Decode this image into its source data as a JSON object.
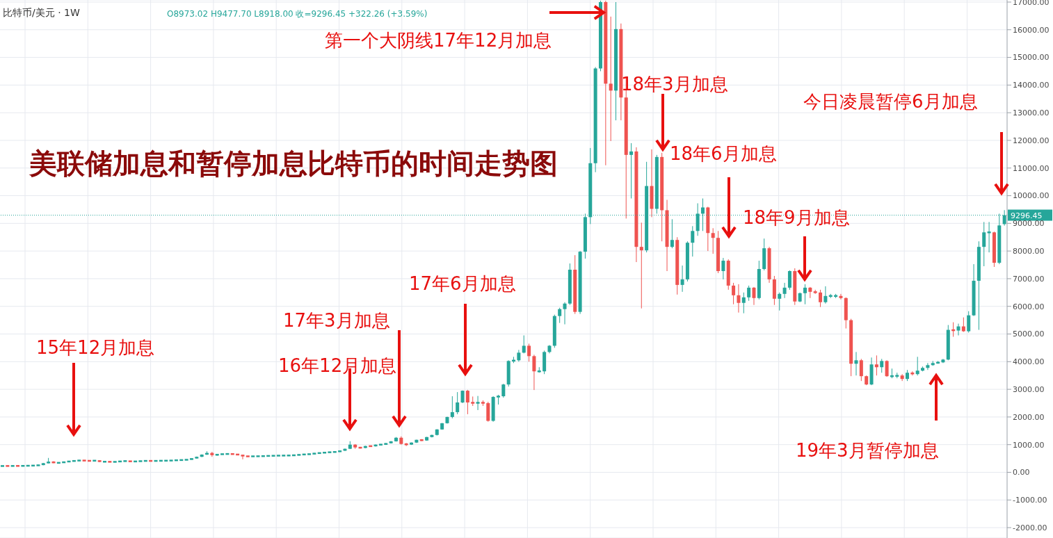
{
  "chart_data": {
    "type": "candlestick",
    "title": "美联储加息和暂停加息比特币的时间走势图",
    "subtitle": "比特币/美元 · 1W",
    "annotations": [
      "O8973.02 H9477.70 L8918.00 收=9296.45 +322.26 (+3.59%)",
      "第一个大阴线17年12月加息",
      "18年3月加息",
      "18年6月加息",
      "18年9月加息",
      "今日凌晨暂停6月加息",
      "15年12月加息",
      "16年12月加息",
      "17年3月加息",
      "17年6月加息",
      "19年3月暂停加息"
    ],
    "categories": [
      null,
      null,
      null,
      null,
      null,
      null,
      null,
      null,
      null,
      null,
      null,
      null,
      null,
      null,
      null,
      null,
      null,
      null,
      null,
      null,
      null,
      null,
      null,
      null,
      null,
      null,
      null,
      null,
      null,
      null,
      null,
      null,
      null,
      null,
      null,
      null,
      null,
      null,
      null,
      null,
      null,
      null,
      null,
      null,
      null,
      null,
      null,
      null,
      null,
      null,
      null,
      null,
      null,
      null,
      null,
      null,
      null,
      null,
      null,
      null,
      null,
      null,
      null,
      null,
      null,
      null,
      null,
      null,
      null,
      null,
      null,
      null,
      null,
      null,
      null,
      null,
      null,
      null,
      null,
      null,
      null,
      null,
      null,
      null,
      null,
      null,
      null,
      null,
      null,
      null,
      null,
      null,
      null,
      null,
      null,
      null,
      null,
      null,
      null,
      null,
      null,
      null,
      null,
      null,
      null,
      null,
      null,
      null,
      null,
      null,
      null,
      null,
      null,
      null,
      null,
      null,
      null,
      null,
      null,
      null,
      null,
      null,
      null,
      null,
      null,
      null,
      null,
      null,
      null,
      null,
      null,
      null,
      null,
      null,
      null,
      null,
      null,
      null,
      null,
      null,
      null,
      null,
      null,
      null,
      null,
      null,
      null,
      null,
      null,
      null,
      null,
      null,
      null,
      null,
      null,
      null,
      null,
      null,
      null,
      null,
      null,
      null,
      null,
      null,
      null,
      null,
      null,
      null,
      null,
      null,
      null,
      null,
      null,
      null,
      null,
      null,
      null,
      null,
      null,
      null,
      null,
      null,
      null,
      null,
      null,
      null,
      null,
      null,
      null,
      null,
      null,
      null,
      null,
      null,
      null,
      null,
      null
    ],
    "ohlc": [
      [
        225,
        235,
        220,
        230
      ],
      [
        230,
        235,
        224,
        228
      ],
      [
        228,
        236,
        225,
        232
      ],
      [
        232,
        236,
        226,
        230
      ],
      [
        230,
        240,
        228,
        235
      ],
      [
        235,
        244,
        232,
        240
      ],
      [
        240,
        250,
        236,
        245
      ],
      [
        245,
        270,
        240,
        260
      ],
      [
        260,
        340,
        255,
        330
      ],
      [
        330,
        520,
        320,
        380
      ],
      [
        380,
        400,
        330,
        340
      ],
      [
        340,
        360,
        320,
        345
      ],
      [
        345,
        390,
        340,
        380
      ],
      [
        380,
        410,
        370,
        400
      ],
      [
        400,
        430,
        390,
        420
      ],
      [
        420,
        445,
        410,
        430
      ],
      [
        430,
        440,
        410,
        420
      ],
      [
        420,
        430,
        400,
        410
      ],
      [
        410,
        440,
        405,
        430
      ],
      [
        430,
        435,
        370,
        380
      ],
      [
        380,
        395,
        370,
        385
      ],
      [
        385,
        390,
        365,
        375
      ],
      [
        375,
        390,
        370,
        380
      ],
      [
        380,
        415,
        375,
        405
      ],
      [
        405,
        415,
        395,
        405
      ],
      [
        405,
        410,
        385,
        390
      ],
      [
        390,
        400,
        385,
        395
      ],
      [
        395,
        415,
        390,
        410
      ],
      [
        410,
        420,
        405,
        415
      ],
      [
        415,
        420,
        400,
        410
      ],
      [
        410,
        420,
        405,
        415
      ],
      [
        415,
        425,
        410,
        420
      ],
      [
        420,
        428,
        412,
        420
      ],
      [
        420,
        435,
        415,
        430
      ],
      [
        430,
        445,
        425,
        440
      ],
      [
        440,
        450,
        435,
        445
      ],
      [
        445,
        465,
        440,
        460
      ],
      [
        460,
        510,
        455,
        500
      ],
      [
        500,
        570,
        495,
        560
      ],
      [
        560,
        650,
        550,
        640
      ],
      [
        640,
        760,
        630,
        700
      ],
      [
        700,
        740,
        560,
        620
      ],
      [
        620,
        660,
        600,
        650
      ],
      [
        650,
        670,
        640,
        660
      ],
      [
        660,
        680,
        650,
        665
      ],
      [
        665,
        670,
        640,
        655
      ],
      [
        655,
        660,
        620,
        630
      ],
      [
        630,
        640,
        470,
        580
      ],
      [
        580,
        590,
        560,
        575
      ],
      [
        575,
        590,
        570,
        580
      ],
      [
        580,
        590,
        570,
        580
      ],
      [
        580,
        600,
        575,
        590
      ],
      [
        590,
        600,
        585,
        595
      ],
      [
        595,
        610,
        590,
        600
      ],
      [
        600,
        612,
        595,
        605
      ],
      [
        605,
        612,
        598,
        605
      ],
      [
        605,
        615,
        600,
        610
      ],
      [
        610,
        625,
        605,
        620
      ],
      [
        620,
        645,
        615,
        640
      ],
      [
        640,
        655,
        635,
        650
      ],
      [
        650,
        665,
        645,
        660
      ],
      [
        660,
        700,
        655,
        690
      ],
      [
        690,
        710,
        680,
        700
      ],
      [
        700,
        730,
        695,
        720
      ],
      [
        720,
        740,
        715,
        730
      ],
      [
        730,
        750,
        720,
        740
      ],
      [
        740,
        790,
        735,
        780
      ],
      [
        780,
        860,
        770,
        850
      ],
      [
        850,
        1125,
        840,
        1000
      ],
      [
        1000,
        1020,
        850,
        900
      ],
      [
        900,
        920,
        860,
        880
      ],
      [
        880,
        960,
        870,
        950
      ],
      [
        950,
        960,
        920,
        940
      ],
      [
        940,
        1010,
        930,
        1000
      ],
      [
        1000,
        1020,
        980,
        1000
      ],
      [
        1000,
        1060,
        990,
        1050
      ],
      [
        1050,
        1130,
        1040,
        1120
      ],
      [
        1120,
        1275,
        1110,
        1250
      ],
      [
        1250,
        1300,
        1000,
        1025
      ],
      [
        1025,
        1060,
        950,
        1000
      ],
      [
        1000,
        1080,
        990,
        1075
      ],
      [
        1075,
        1180,
        1060,
        1175
      ],
      [
        1175,
        1200,
        1130,
        1150
      ],
      [
        1150,
        1280,
        1140,
        1275
      ],
      [
        1275,
        1360,
        1260,
        1350
      ],
      [
        1350,
        1560,
        1330,
        1550
      ],
      [
        1550,
        1780,
        1540,
        1775
      ],
      [
        1775,
        2010,
        1760,
        2000
      ],
      [
        2000,
        2750,
        1950,
        2175
      ],
      [
        2175,
        2900,
        2100,
        2525
      ],
      [
        2525,
        2960,
        2500,
        2950
      ],
      [
        2950,
        2980,
        2100,
        2525
      ],
      [
        2525,
        2740,
        2400,
        2500
      ],
      [
        2500,
        2760,
        2250,
        2525
      ],
      [
        2525,
        2600,
        2400,
        2500
      ],
      [
        2500,
        2550,
        1830,
        1860
      ],
      [
        1860,
        2750,
        1830,
        2725
      ],
      [
        2725,
        2800,
        2450,
        2750
      ],
      [
        2750,
        3200,
        2700,
        3175
      ],
      [
        3175,
        4050,
        3100,
        4025
      ],
      [
        4025,
        4175,
        3950,
        4050
      ],
      [
        4050,
        4425,
        4000,
        4325
      ],
      [
        4325,
        4950,
        4300,
        4575
      ],
      [
        4575,
        4650,
        4000,
        4200
      ],
      [
        4200,
        4250,
        2975,
        3650
      ],
      [
        3650,
        3800,
        3600,
        3650
      ],
      [
        3650,
        4400,
        3550,
        4350
      ],
      [
        4350,
        4600,
        4300,
        4575
      ],
      [
        4575,
        5700,
        4500,
        5650
      ],
      [
        5650,
        5950,
        5400,
        5900
      ],
      [
        5900,
        6150,
        5350,
        6100
      ],
      [
        6100,
        7550,
        6050,
        7325
      ],
      [
        7325,
        7850,
        5725,
        5800
      ],
      [
        5800,
        8000,
        5725,
        7975
      ],
      [
        7975,
        9350,
        7725,
        9225
      ],
      [
        9225,
        11725,
        8975,
        11175
      ],
      [
        11175,
        14650,
        10850,
        14600
      ],
      [
        14600,
        17050,
        14500,
        17000
      ],
      [
        17000,
        17050,
        11100,
        14050
      ],
      [
        14050,
        16475,
        11975,
        13800
      ],
      [
        13800,
        17000,
        12725,
        16025
      ],
      [
        16025,
        16225,
        12725,
        13550
      ],
      [
        13550,
        14300,
        9175,
        11475
      ],
      [
        11475,
        11900,
        9900,
        11600
      ],
      [
        11600,
        11750,
        7600,
        8150
      ],
      [
        8150,
        9025,
        5925,
        8025
      ],
      [
        8025,
        11225,
        7950,
        10350
      ],
      [
        10350,
        11675,
        9225,
        9525
      ],
      [
        9525,
        11475,
        9350,
        11400
      ],
      [
        11400,
        11550,
        8350,
        9475
      ],
      [
        9475,
        9850,
        7275,
        8150
      ],
      [
        8150,
        9150,
        8100,
        8400
      ],
      [
        8400,
        8500,
        6425,
        6775
      ],
      [
        6775,
        7475,
        6525,
        6975
      ],
      [
        6975,
        8350,
        6900,
        8300
      ],
      [
        8300,
        8900,
        7800,
        8725
      ],
      [
        8725,
        9725,
        8550,
        9350
      ],
      [
        9350,
        9900,
        8725,
        9575
      ],
      [
        9575,
        9600,
        8000,
        8650
      ],
      [
        8650,
        8825,
        7900,
        8475
      ],
      [
        8475,
        8725,
        7200,
        7275
      ],
      [
        7275,
        7750,
        6975,
        7650
      ],
      [
        7650,
        7700,
        6600,
        6750
      ],
      [
        6750,
        6850,
        6075,
        6400
      ],
      [
        6400,
        6800,
        5775,
        6125
      ],
      [
        6125,
        6500,
        5750,
        6325
      ],
      [
        6325,
        6750,
        6200,
        6675
      ],
      [
        6675,
        6700,
        6050,
        6300
      ],
      [
        6300,
        7650,
        6250,
        7350
      ],
      [
        7350,
        8450,
        7300,
        8100
      ],
      [
        8100,
        8150,
        6850,
        6975
      ],
      [
        6975,
        7100,
        6050,
        6275
      ],
      [
        6275,
        6500,
        5850,
        6450
      ],
      [
        6450,
        6850,
        6300,
        6675
      ],
      [
        6675,
        7300,
        6600,
        7275
      ],
      [
        7275,
        7375,
        6050,
        6175
      ],
      [
        6175,
        6500,
        6150,
        6475
      ],
      [
        6475,
        6800,
        6075,
        6675
      ],
      [
        6675,
        6700,
        6300,
        6525
      ],
      [
        6525,
        6600,
        6450,
        6500
      ],
      [
        6500,
        6600,
        5975,
        6150
      ],
      [
        6150,
        6725,
        6100,
        6375
      ],
      [
        6375,
        6450,
        6300,
        6375
      ],
      [
        6375,
        6450,
        6300,
        6375
      ],
      [
        6375,
        6450,
        6250,
        6300
      ],
      [
        6300,
        6325,
        5200,
        5500
      ],
      [
        5500,
        5550,
        3475,
        3925
      ],
      [
        3925,
        4350,
        3500,
        4050
      ],
      [
        4050,
        4100,
        3300,
        3475
      ],
      [
        3475,
        3500,
        3150,
        3175
      ],
      [
        3175,
        4150,
        3150,
        3900
      ],
      [
        3900,
        4225,
        3500,
        3800
      ],
      [
        3800,
        4100,
        3600,
        4025
      ],
      [
        4025,
        4050,
        3450,
        3475
      ],
      [
        3475,
        3750,
        3400,
        3475
      ],
      [
        3475,
        3600,
        3400,
        3500
      ],
      [
        3500,
        3550,
        3300,
        3375
      ],
      [
        3375,
        3700,
        3300,
        3600
      ],
      [
        3600,
        3650,
        3500,
        3550
      ],
      [
        3550,
        4175,
        3500,
        3675
      ],
      [
        3675,
        3825,
        3650,
        3775
      ],
      [
        3775,
        3950,
        3700,
        3875
      ],
      [
        3875,
        4025,
        3850,
        3950
      ],
      [
        3950,
        4025,
        3925,
        3975
      ],
      [
        3975,
        4100,
        3950,
        4075
      ],
      [
        4075,
        5325,
        4050,
        5150
      ],
      [
        5150,
        5425,
        4900,
        5125
      ],
      [
        5125,
        5375,
        4950,
        5275
      ],
      [
        5275,
        5600,
        5075,
        5100
      ],
      [
        5100,
        5825,
        5050,
        5675
      ],
      [
        5675,
        7525,
        5650,
        6925
      ],
      [
        6925,
        8350,
        5150,
        8150
      ],
      [
        8150,
        9050,
        7450,
        8675
      ],
      [
        8675,
        9050,
        7950,
        8675
      ],
      [
        8675,
        8700,
        7425,
        7575
      ],
      [
        7575,
        9350,
        7525,
        8925
      ],
      [
        8973.02,
        9477.7,
        8918.0,
        9296.45
      ]
    ],
    "colors": [
      "#26a69a",
      "#ef5350",
      "#26a69a",
      "#ef5350",
      "#26a69a",
      "#26a69a",
      "#26a69a",
      "#26a69a",
      "#26a69a",
      "#26a69a",
      "#ef5350",
      "#26a69a",
      "#26a69a",
      "#26a69a",
      "#26a69a",
      "#26a69a",
      "#ef5350",
      "#ef5350",
      "#26a69a",
      "#ef5350",
      "#26a69a",
      "#ef5350",
      "#26a69a",
      "#26a69a",
      "#26a69a",
      "#ef5350",
      "#26a69a",
      "#26a69a",
      "#26a69a",
      "#ef5350",
      "#26a69a",
      "#26a69a",
      "#26a69a",
      "#26a69a",
      "#26a69a",
      "#26a69a",
      "#26a69a",
      "#26a69a",
      "#26a69a",
      "#26a69a",
      "#26a69a",
      "#ef5350",
      "#26a69a",
      "#26a69a",
      "#26a69a",
      "#ef5350",
      "#ef5350",
      "#ef5350",
      "#ef5350",
      "#26a69a",
      "#26a69a",
      "#26a69a",
      "#26a69a",
      "#26a69a",
      "#26a69a",
      "#26a69a",
      "#26a69a",
      "#26a69a",
      "#26a69a",
      "#26a69a",
      "#26a69a",
      "#26a69a",
      "#26a69a",
      "#26a69a",
      "#26a69a",
      "#26a69a",
      "#26a69a",
      "#26a69a",
      "#26a69a",
      "#ef5350",
      "#ef5350",
      "#26a69a",
      "#ef5350",
      "#26a69a",
      "#26a69a",
      "#26a69a",
      "#26a69a",
      "#26a69a",
      "#ef5350",
      "#ef5350",
      "#26a69a",
      "#26a69a",
      "#ef5350",
      "#26a69a",
      "#26a69a",
      "#26a69a",
      "#26a69a",
      "#26a69a",
      "#26a69a",
      "#26a69a",
      "#26a69a",
      "#ef5350",
      "#ef5350",
      "#26a69a",
      "#ef5350",
      "#ef5350",
      "#26a69a",
      "#26a69a",
      "#26a69a",
      "#26a69a",
      "#26a69a",
      "#26a69a",
      "#26a69a",
      "#ef5350",
      "#ef5350",
      "#26a69a",
      "#26a69a",
      "#26a69a",
      "#26a69a",
      "#26a69a",
      "#26a69a",
      "#26a69a",
      "#ef5350",
      "#26a69a",
      "#26a69a",
      "#26a69a",
      "#26a69a",
      "#26a69a",
      "#ef5350",
      "#ef5350",
      "#26a69a",
      "#ef5350",
      "#ef5350",
      "#26a69a",
      "#ef5350",
      "#ef5350",
      "#26a69a",
      "#ef5350",
      "#26a69a",
      "#ef5350",
      "#ef5350",
      "#26a69a",
      "#ef5350",
      "#26a69a",
      "#26a69a",
      "#26a69a",
      "#26a69a",
      "#26a69a",
      "#ef5350",
      "#ef5350",
      "#ef5350",
      "#26a69a",
      "#ef5350",
      "#ef5350",
      "#ef5350",
      "#26a69a",
      "#26a69a",
      "#ef5350",
      "#26a69a",
      "#26a69a",
      "#ef5350",
      "#ef5350",
      "#26a69a",
      "#26a69a",
      "#26a69a",
      "#ef5350",
      "#26a69a",
      "#26a69a",
      "#ef5350",
      "#ef5350",
      "#ef5350",
      "#26a69a",
      "#26a69a",
      "#26a69a",
      "#ef5350",
      "#ef5350",
      "#ef5350",
      "#26a69a",
      "#ef5350",
      "#ef5350",
      "#26a69a",
      "#ef5350",
      "#26a69a",
      "#ef5350",
      "#26a69a",
      "#26a69a",
      "#ef5350",
      "#26a69a",
      "#ef5350",
      "#26a69a",
      "#26a69a",
      "#26a69a",
      "#26a69a",
      "#26a69a",
      "#26a69a",
      "#26a69a",
      "#ef5350",
      "#26a69a",
      "#ef5350",
      "#26a69a",
      "#26a69a",
      "#26a69a",
      "#26a69a",
      "#26a69a",
      "#ef5350",
      "#26a69a",
      "#26a69a"
    ],
    "ylim": [
      -2375,
      17075
    ],
    "yticks": [
      {
        "value": -2000,
        "label": "-2000.00"
      },
      {
        "value": -1000,
        "label": "-1000.00"
      },
      {
        "value": 0,
        "label": "0.00"
      },
      {
        "value": 1000,
        "label": "1000.00"
      },
      {
        "value": 2000,
        "label": "2000.00"
      },
      {
        "value": 3000,
        "label": "3000.00"
      },
      {
        "value": 4000,
        "label": "4000.00"
      },
      {
        "value": 5000,
        "label": "5000.00"
      },
      {
        "value": 6000,
        "label": "6000.00"
      },
      {
        "value": 7000,
        "label": "7000.00"
      },
      {
        "value": 8000,
        "label": "8000.00"
      },
      {
        "value": 9000,
        "label": "9000.00"
      },
      {
        "value": 10000,
        "label": "10000.00"
      },
      {
        "value": 11000,
        "label": "11000.00"
      },
      {
        "value": 12000,
        "label": "12000.00"
      },
      {
        "value": 13000,
        "label": "13000.00"
      },
      {
        "value": 14000,
        "label": "14000.00"
      },
      {
        "value": 15000,
        "label": "15000.00"
      },
      {
        "value": 16000,
        "label": "16000.00"
      },
      {
        "value": 17000,
        "label": "17000.00"
      }
    ],
    "ref_lines": [
      {
        "axis": "y",
        "value": 9296.45,
        "label": "9296.45",
        "color": "#26a69a",
        "line_style": "dotted"
      }
    ],
    "grid": true,
    "legend": false
  }
}
